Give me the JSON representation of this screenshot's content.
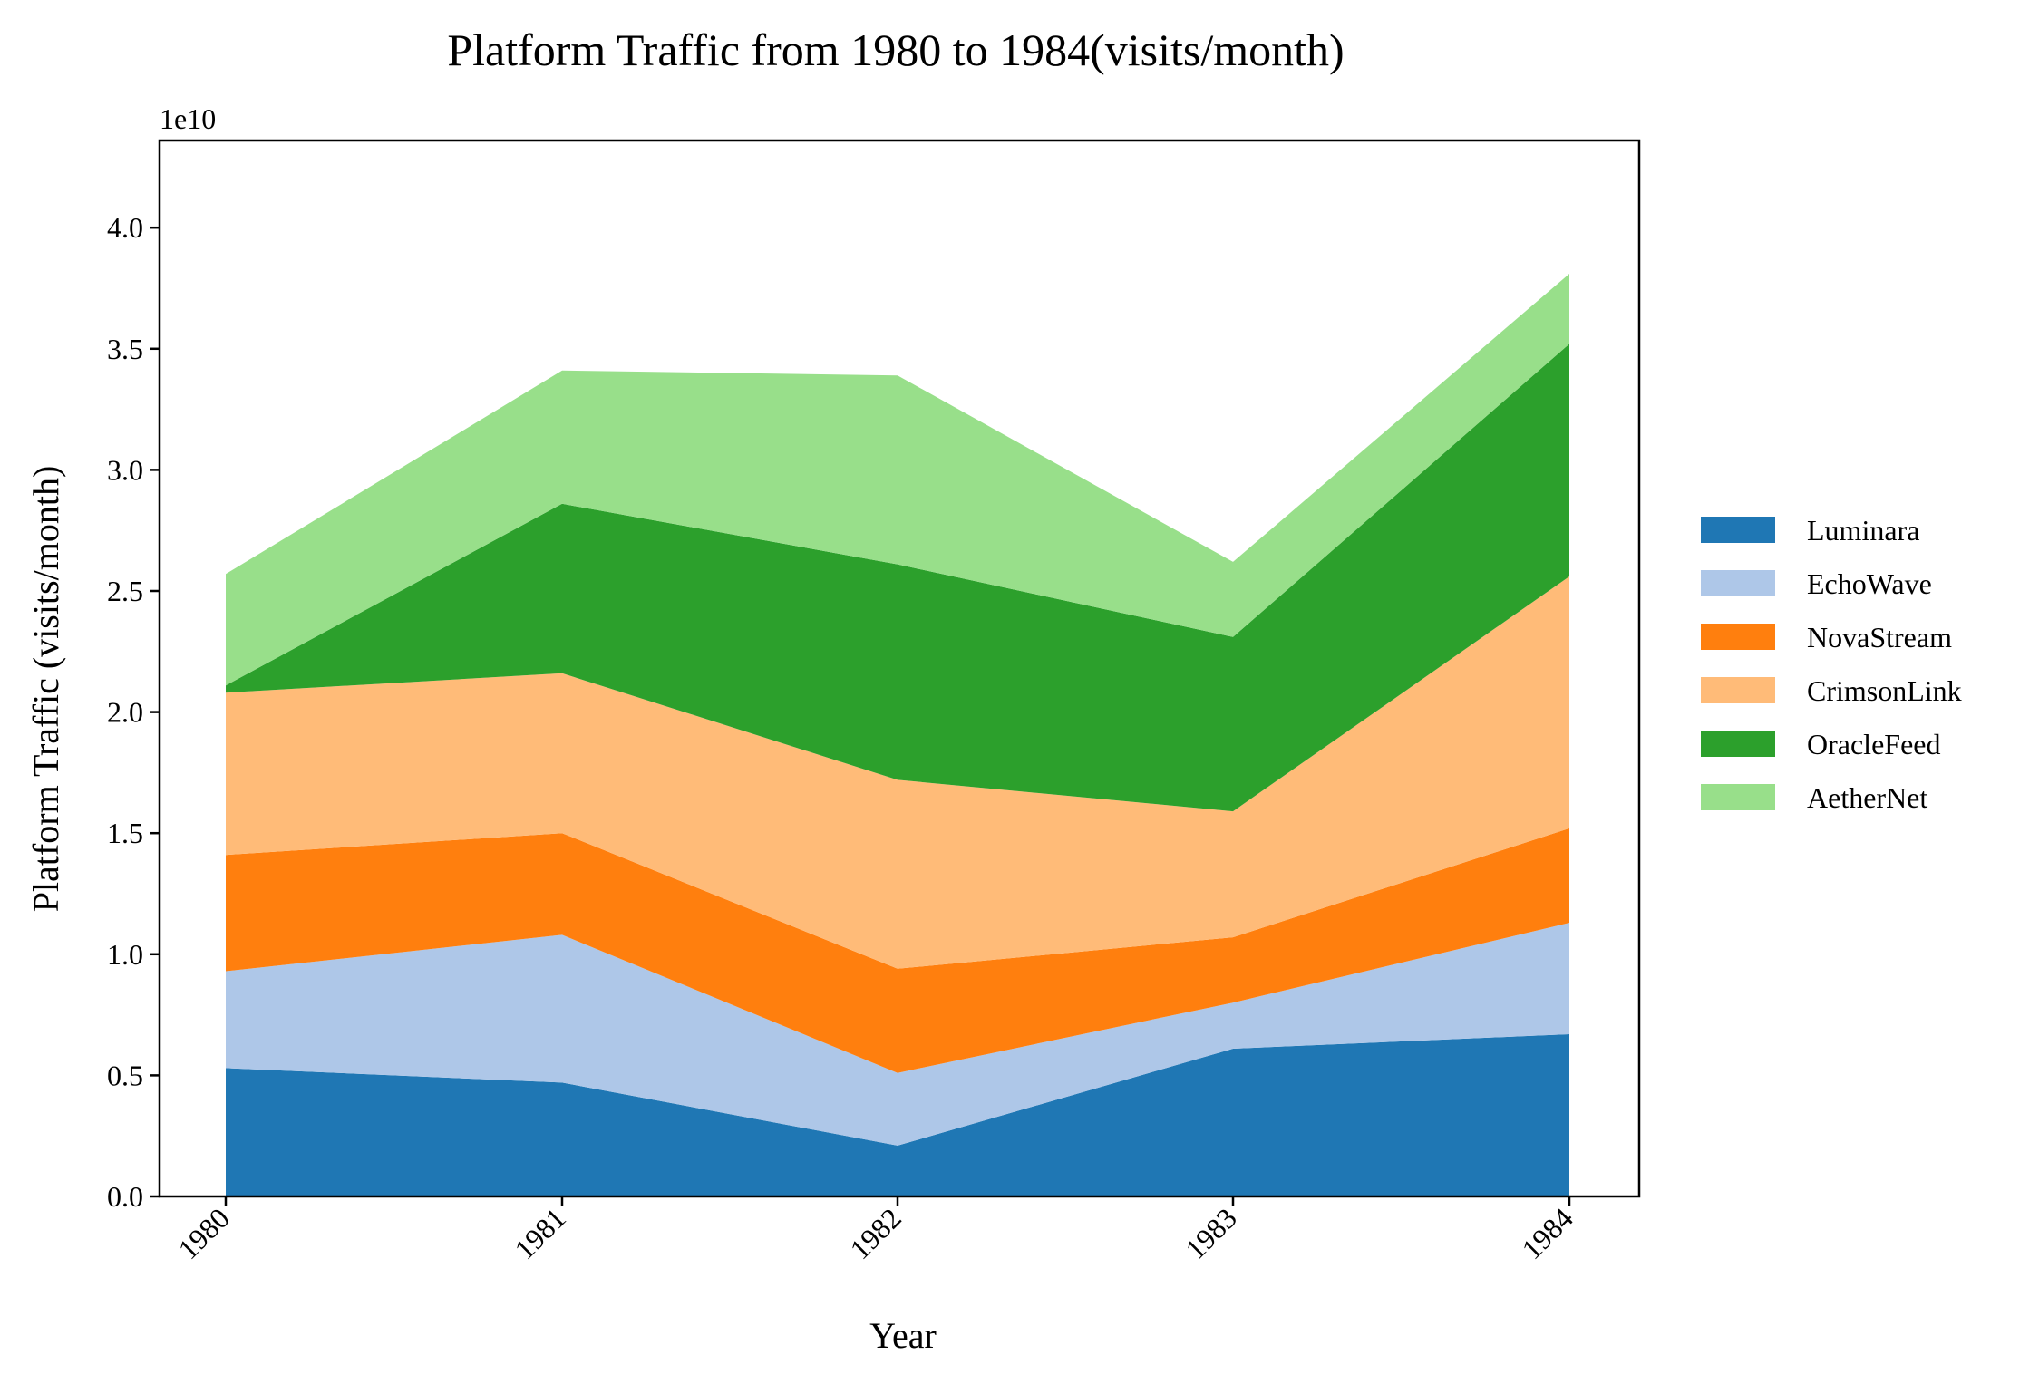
{
  "chart_data": {
    "type": "area",
    "stacked": true,
    "title": "Platform Traffic from 1980 to 1984(visits/month)",
    "xlabel": "Year",
    "ylabel": "Platform Traffic (visits/month)",
    "y_offset_label": "1e10",
    "x": [
      "1980",
      "1981",
      "1982",
      "1983",
      "1984"
    ],
    "ylim": [
      0,
      4.36
    ],
    "y_ticks": [
      0.0,
      0.5,
      1.0,
      1.5,
      2.0,
      2.5,
      3.0,
      3.5,
      4.0
    ],
    "y_tick_labels": [
      "0.0",
      "0.5",
      "1.0",
      "1.5",
      "2.0",
      "2.5",
      "3.0",
      "3.5",
      "4.0"
    ],
    "grid": false,
    "legend_position": "right",
    "units_note": "values in units of 1e10 visits/month",
    "series": [
      {
        "name": "Luminara",
        "color": "#1f77b4",
        "values": [
          0.53,
          0.47,
          0.21,
          0.61,
          0.67
        ]
      },
      {
        "name": "EchoWave",
        "color": "#aec7e8",
        "values": [
          0.4,
          0.61,
          0.3,
          0.19,
          0.46
        ]
      },
      {
        "name": "NovaStream",
        "color": "#ff7f0e",
        "values": [
          0.48,
          0.42,
          0.43,
          0.27,
          0.39
        ]
      },
      {
        "name": "CrimsonLink",
        "color": "#ffbb78",
        "values": [
          0.67,
          0.66,
          0.78,
          0.52,
          1.04
        ]
      },
      {
        "name": "OracleFeed",
        "color": "#2ca02c",
        "values": [
          0.03,
          0.7,
          0.89,
          0.72,
          0.96
        ]
      },
      {
        "name": "AetherNet",
        "color": "#98df8a",
        "values": [
          0.46,
          0.55,
          0.78,
          0.31,
          0.29
        ]
      }
    ]
  }
}
